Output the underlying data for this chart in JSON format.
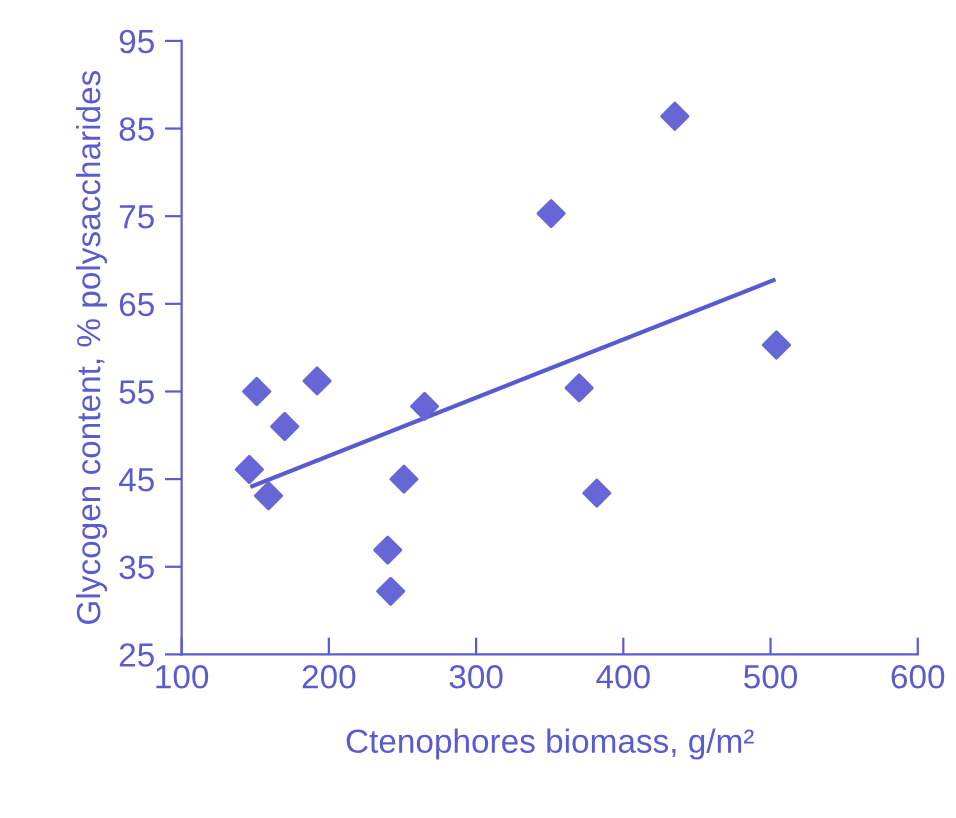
{
  "chart_data": {
    "type": "scatter",
    "xlabel": "Ctenophores biomass, g/m²",
    "ylabel": "Glycogen content, % polysaccharides",
    "series": [
      {
        "color": "#6666d6",
        "marker": "diamond",
        "x": [
          151,
          192,
          170,
          146,
          159,
          265,
          251,
          240,
          242,
          351,
          370,
          382,
          435,
          504
        ],
        "values": [
          55.0,
          56.2,
          51.0,
          46.1,
          43.1,
          53.3,
          45.0,
          36.9,
          32.2,
          75.3,
          55.4,
          43.4,
          86.4,
          60.3
        ]
      },
      {
        "type": "line",
        "color": "#5a5ad0",
        "x": [
          148,
          502
        ],
        "values": [
          44.2,
          67.7
        ]
      }
    ],
    "xlim": [
      100,
      600
    ],
    "xticks": [
      100,
      200,
      300,
      400,
      500,
      600
    ],
    "ylim": [
      25,
      95
    ],
    "yticks": [
      25,
      35,
      45,
      55,
      65,
      75,
      85,
      95
    ],
    "grid": false
  }
}
